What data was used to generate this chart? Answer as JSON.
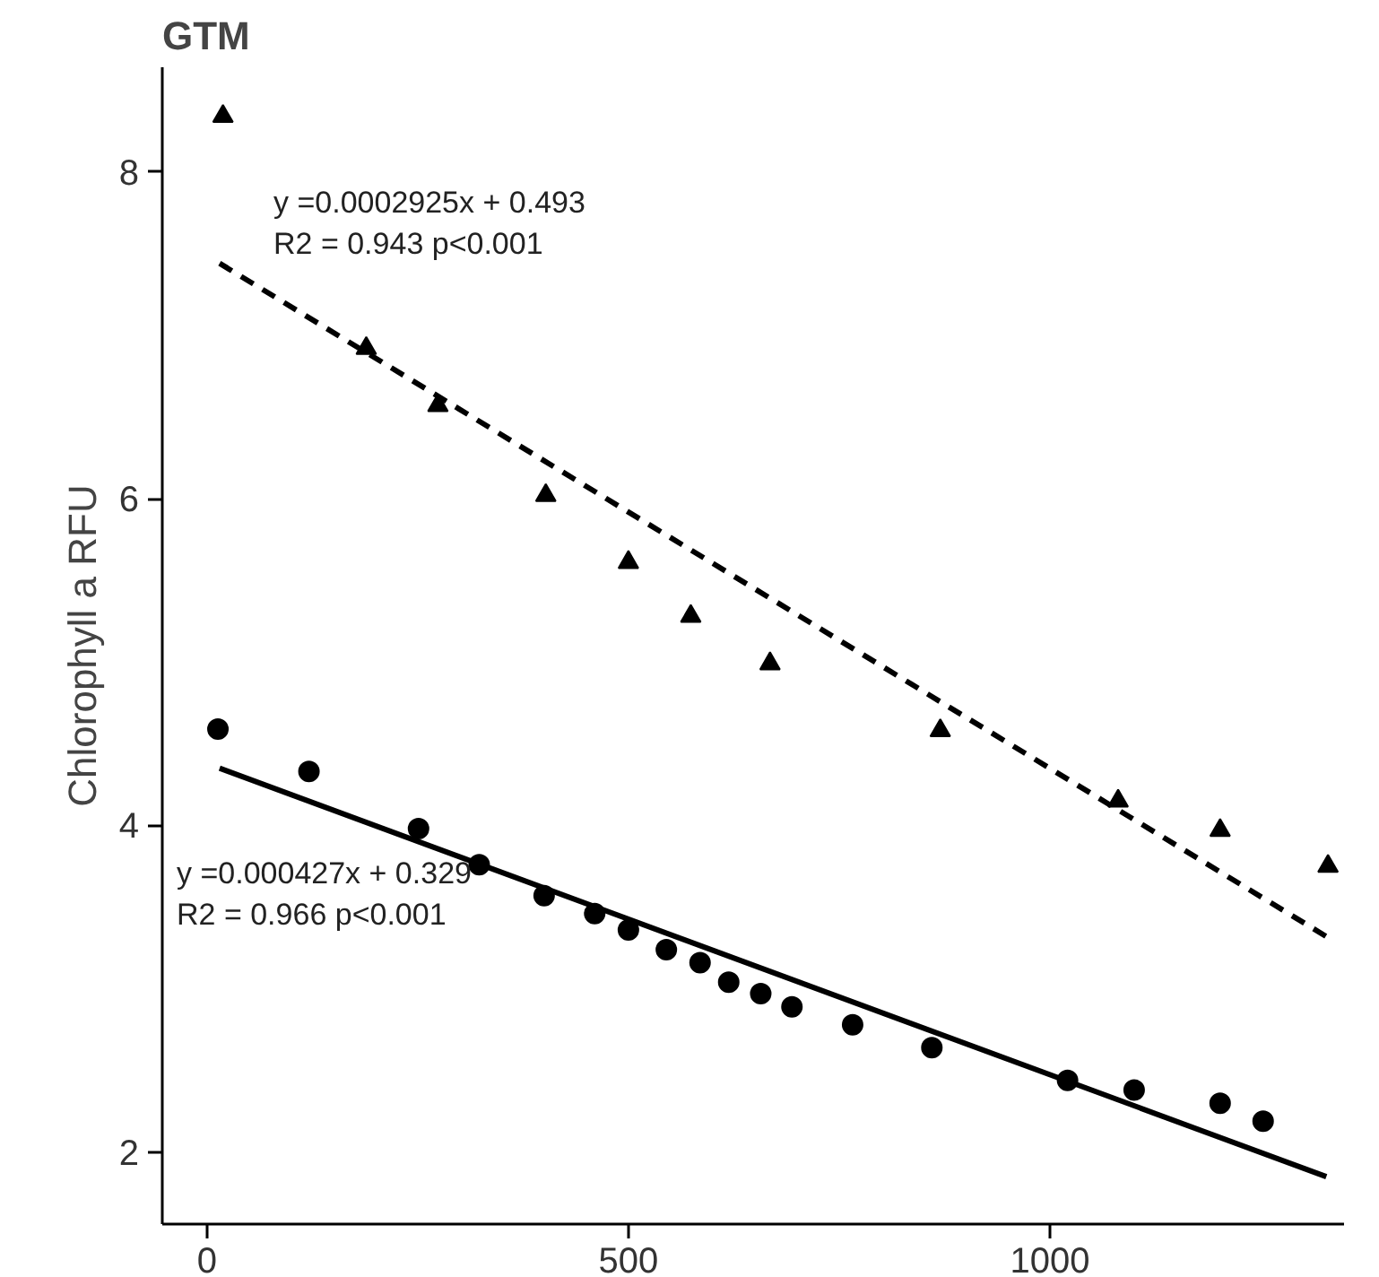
{
  "chart_data": {
    "type": "scatter",
    "title": "GTM",
    "ylabel": "Chlorophyll a RFU",
    "xlim": [
      -53,
      1349
    ],
    "ylim": [
      1.56,
      8.64
    ],
    "xticks": [
      0,
      500,
      1000
    ],
    "yticks": [
      2,
      4,
      6,
      8
    ],
    "grid": false,
    "annotations": [
      "y =0.0002925x + 0.493\nR2 = 0.943 p<0.001",
      "y =0.000427x + 0.329\nR2 = 0.966 p<0.001"
    ],
    "series": [
      {
        "marker": "triangle",
        "color": "#000000",
        "x": [
          19,
          189,
          274,
          402,
          500,
          574,
          668,
          870,
          1081,
          1202,
          1330
        ],
        "values": [
          8.34,
          6.92,
          6.57,
          6.02,
          5.61,
          5.28,
          4.99,
          4.58,
          4.15,
          3.97,
          3.75
        ]
      },
      {
        "type": "line",
        "line_style": "dashed",
        "marker": "none",
        "color": "#000000",
        "x": [
          15,
          1328
        ],
        "values": [
          7.44,
          3.32
        ]
      },
      {
        "marker": "circle",
        "color": "#000000",
        "x": [
          13,
          121,
          251,
          323,
          400,
          460,
          500,
          545,
          585,
          619,
          657,
          694,
          766,
          860,
          1021,
          1100,
          1202,
          1253
        ],
        "values": [
          4.59,
          4.33,
          3.98,
          3.76,
          3.57,
          3.46,
          3.36,
          3.24,
          3.16,
          3.04,
          2.97,
          2.89,
          2.78,
          2.64,
          2.44,
          2.38,
          2.3,
          2.19
        ]
      },
      {
        "type": "line",
        "line_style": "solid",
        "marker": "none",
        "color": "#000000",
        "x": [
          15,
          1328
        ],
        "values": [
          4.35,
          1.85
        ]
      }
    ]
  }
}
